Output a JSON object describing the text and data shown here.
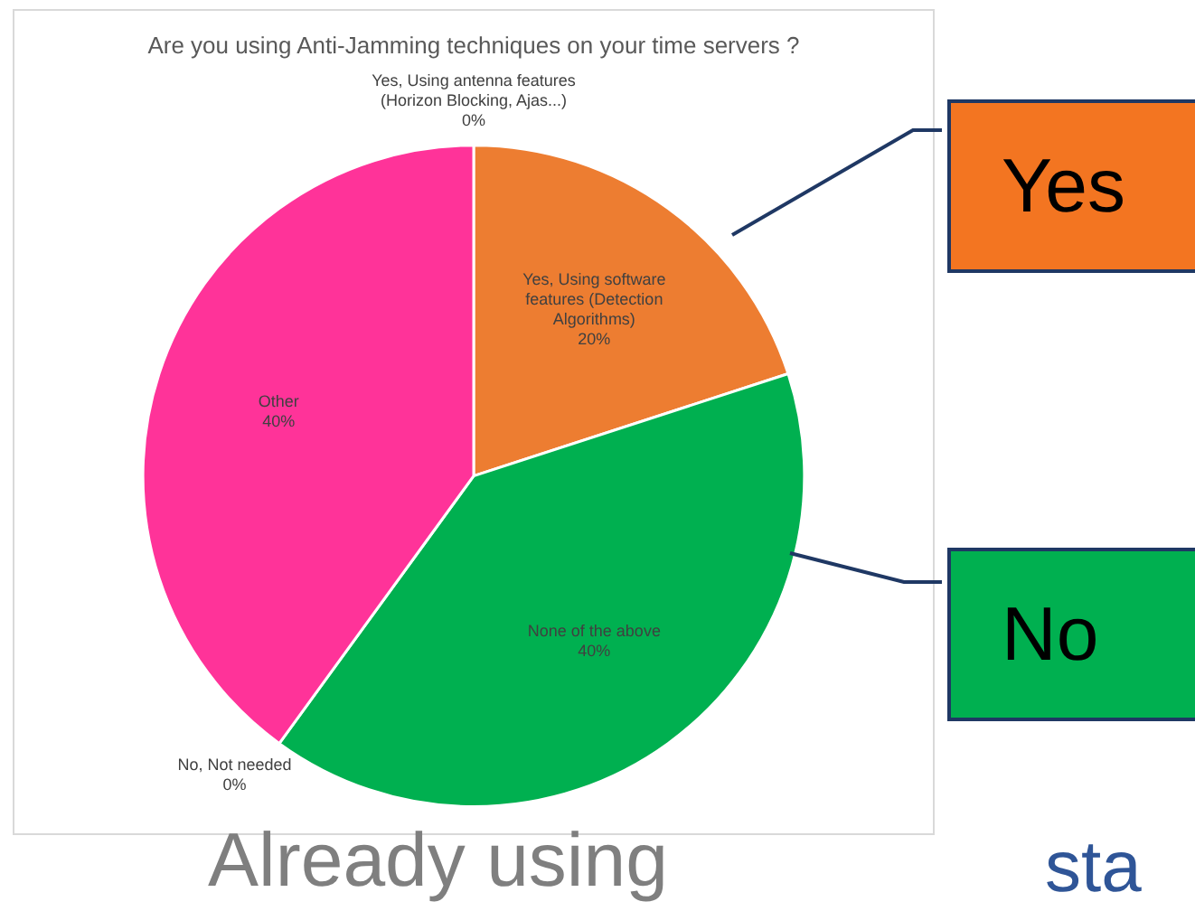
{
  "chart_data": {
    "type": "pie",
    "title": "Are you using Anti-Jamming techniques on your time servers ?",
    "categories": [
      "Yes, Using antenna features (Horizon Blocking, Ajas...)",
      "Yes, Using software features (Detection Algorithms)",
      "None of the above",
      "No, Not needed",
      "Other"
    ],
    "values": [
      0,
      20,
      40,
      0,
      40
    ],
    "value_labels": [
      "0%",
      "20%",
      "40%",
      "0%",
      "40%"
    ],
    "colors": [
      "#4472c4",
      "#ed7d31",
      "#00b050",
      "#ffc000",
      "#ff3399"
    ],
    "legend": false,
    "annotations": [
      "Yes",
      "No",
      "Already using",
      "sta"
    ]
  }
}
